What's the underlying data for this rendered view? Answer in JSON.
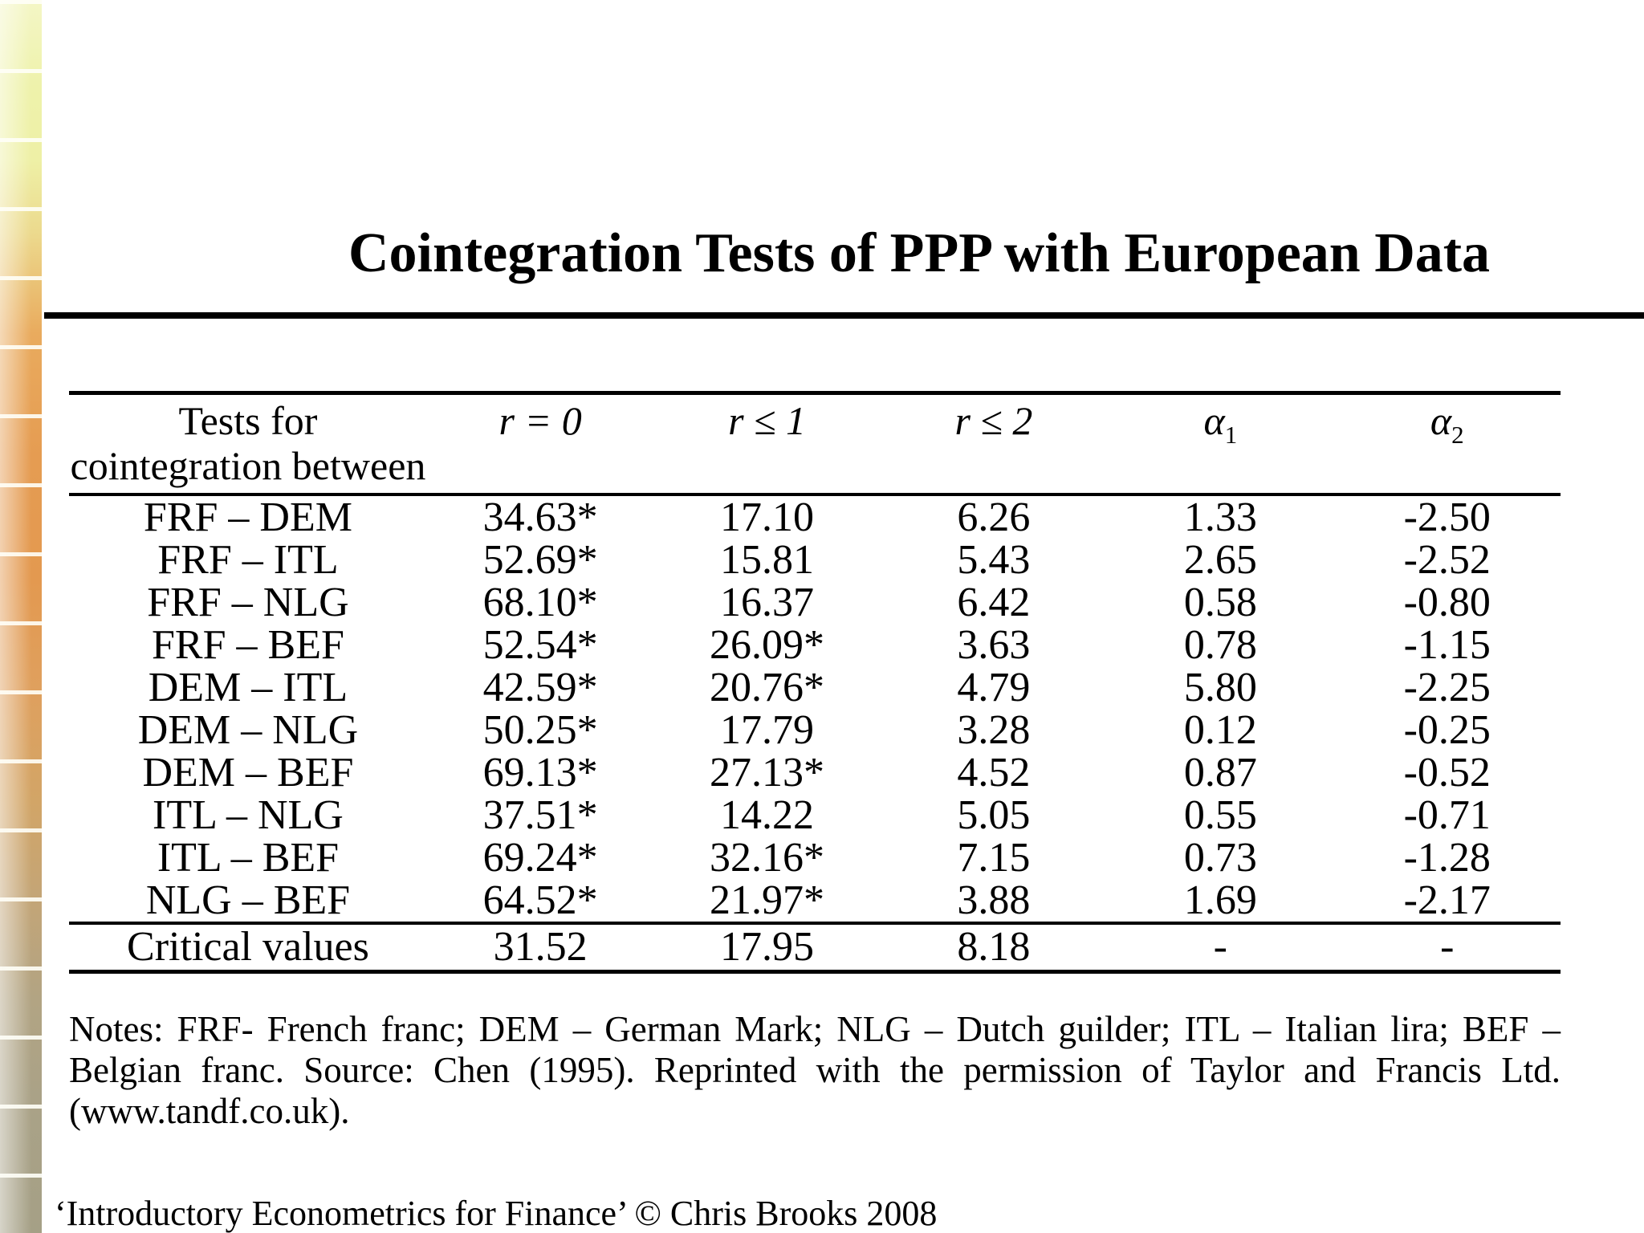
{
  "slide": {
    "title": "Cointegration Tests of PPP with European Data",
    "footer": "‘Introductory Econometrics for Finance’ © Chris Brooks 2008"
  },
  "decor": {
    "strip_colors_top_to_bottom": [
      "#eef2ab",
      "#ecd98d",
      "#e39950",
      "#c3a577",
      "#a5a086"
    ]
  },
  "table": {
    "header": {
      "col1_line1": "Tests for",
      "col1_line2": "cointegration between",
      "col2": "r = 0",
      "col3": "r ≤ 1",
      "col4": "r ≤ 2",
      "alpha1": {
        "base": "α",
        "sub": "1"
      },
      "alpha2": {
        "base": "α",
        "sub": "2"
      }
    },
    "rows": [
      {
        "pair": "FRF – DEM",
        "r0": "34.63*",
        "r1": "17.10",
        "r2": "6.26",
        "a1": "1.33",
        "a2": "-2.50"
      },
      {
        "pair": "FRF – ITL",
        "r0": "52.69*",
        "r1": "15.81",
        "r2": "5.43",
        "a1": "2.65",
        "a2": "-2.52"
      },
      {
        "pair": "FRF – NLG",
        "r0": "68.10*",
        "r1": "16.37",
        "r2": "6.42",
        "a1": "0.58",
        "a2": "-0.80"
      },
      {
        "pair": "FRF – BEF",
        "r0": "52.54*",
        "r1": "26.09*",
        "r2": "3.63",
        "a1": "0.78",
        "a2": "-1.15"
      },
      {
        "pair": "DEM – ITL",
        "r0": "42.59*",
        "r1": "20.76*",
        "r2": "4.79",
        "a1": "5.80",
        "a2": "-2.25"
      },
      {
        "pair": "DEM – NLG",
        "r0": "50.25*",
        "r1": "17.79",
        "r2": "3.28",
        "a1": "0.12",
        "a2": "-0.25"
      },
      {
        "pair": "DEM – BEF",
        "r0": "69.13*",
        "r1": "27.13*",
        "r2": "4.52",
        "a1": "0.87",
        "a2": "-0.52"
      },
      {
        "pair": "ITL – NLG",
        "r0": "37.51*",
        "r1": "14.22",
        "r2": "5.05",
        "a1": "0.55",
        "a2": "-0.71"
      },
      {
        "pair": "ITL – BEF",
        "r0": "69.24*",
        "r1": "32.16*",
        "r2": "7.15",
        "a1": "0.73",
        "a2": "-1.28"
      },
      {
        "pair": "NLG – BEF",
        "r0": "64.52*",
        "r1": "21.97*",
        "r2": "3.88",
        "a1": "1.69",
        "a2": "-2.17"
      }
    ],
    "critical": {
      "label": "Critical values",
      "r0": "31.52",
      "r1": "17.95",
      "r2": "8.18",
      "a1": "-",
      "a2": "-"
    },
    "notes": "Notes: FRF- French franc; DEM – German Mark; NLG – Dutch guilder; ITL – Italian lira; BEF – Belgian franc. Source: Chen (1995). Reprinted with the permission of Taylor and Francis Ltd. (www.tandf.co.uk)."
  }
}
